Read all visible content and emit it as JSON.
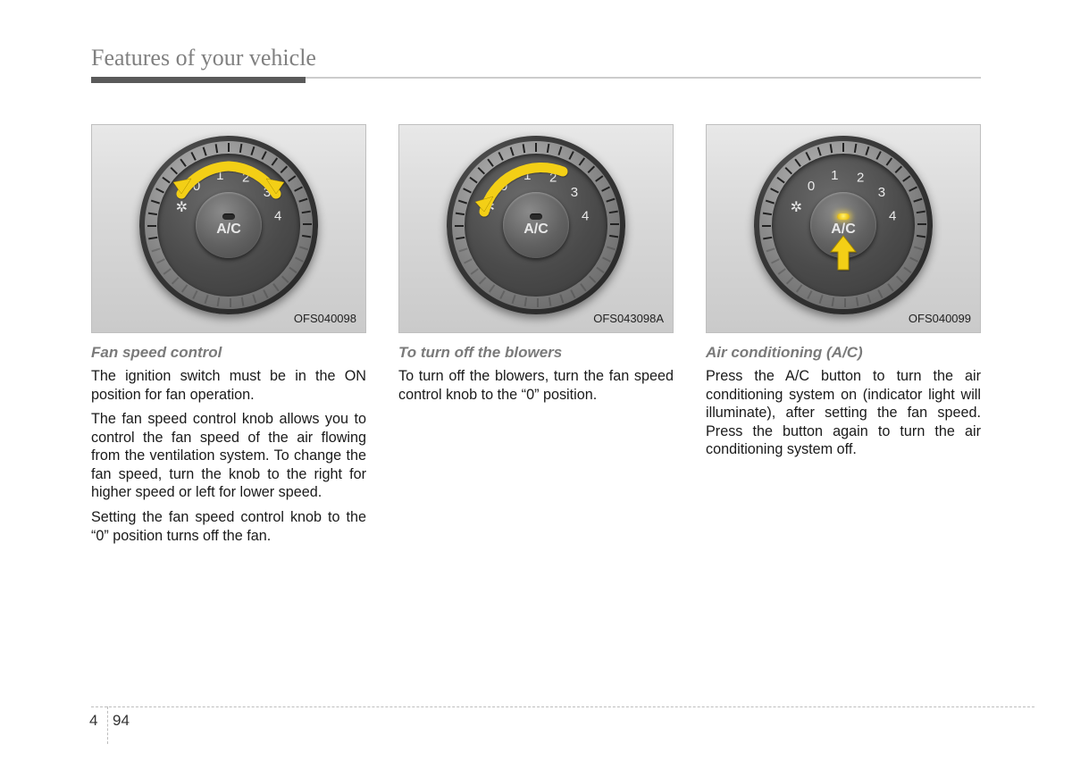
{
  "header": {
    "title": "Features of your vehicle"
  },
  "columns": [
    {
      "image_code": "OFS040098",
      "subhead": "Fan speed control",
      "paragraphs": [
        "The ignition switch must be in the ON position for fan operation.",
        "The fan speed control knob allows you to control the fan speed of the air flowing from the ventilation system. To change the fan speed, turn the knob to the right for higher speed or left for lower speed.",
        "Setting the fan speed control knob to the “0” position turns off the fan."
      ],
      "dial": {
        "ac_label": "A/C",
        "numbers": [
          "0",
          "1",
          "2",
          "3",
          "4"
        ],
        "indicator_on": false,
        "arc": {
          "type": "double",
          "color": "#f3cf14"
        },
        "push_arrow": false
      }
    },
    {
      "image_code": "OFS043098A",
      "subhead": "To turn off the blowers",
      "paragraphs": [
        "To turn off the blowers, turn the fan speed control knob to the “0” position."
      ],
      "dial": {
        "ac_label": "A/C",
        "numbers": [
          "0",
          "1",
          "2",
          "3",
          "4"
        ],
        "indicator_on": false,
        "arc": {
          "type": "ccw",
          "color": "#f3cf14"
        },
        "push_arrow": false
      }
    },
    {
      "image_code": "OFS040099",
      "subhead": "Air conditioning (A/C)",
      "paragraphs": [
        "Press the A/C button to turn the air conditioning system on (indicator light will illuminate), after setting the fan speed. Press the button again to turn the air conditioning system off."
      ],
      "dial": {
        "ac_label": "A/C",
        "numbers": [
          "0",
          "1",
          "2",
          "3",
          "4"
        ],
        "indicator_on": true,
        "arc": {
          "type": "none",
          "color": "#f3cf14"
        },
        "push_arrow": true
      }
    }
  ],
  "footer": {
    "chapter": "4",
    "page": "94"
  },
  "style": {
    "arrow_color": "#f3cf14",
    "arrow_edge": "#a88a00",
    "dial_numbers_radius": 56,
    "dial_number_angles_deg": [
      -130,
      -100,
      -70,
      -40,
      -10
    ],
    "fan_icon_angle_deg": -160,
    "tick_count": 40
  }
}
